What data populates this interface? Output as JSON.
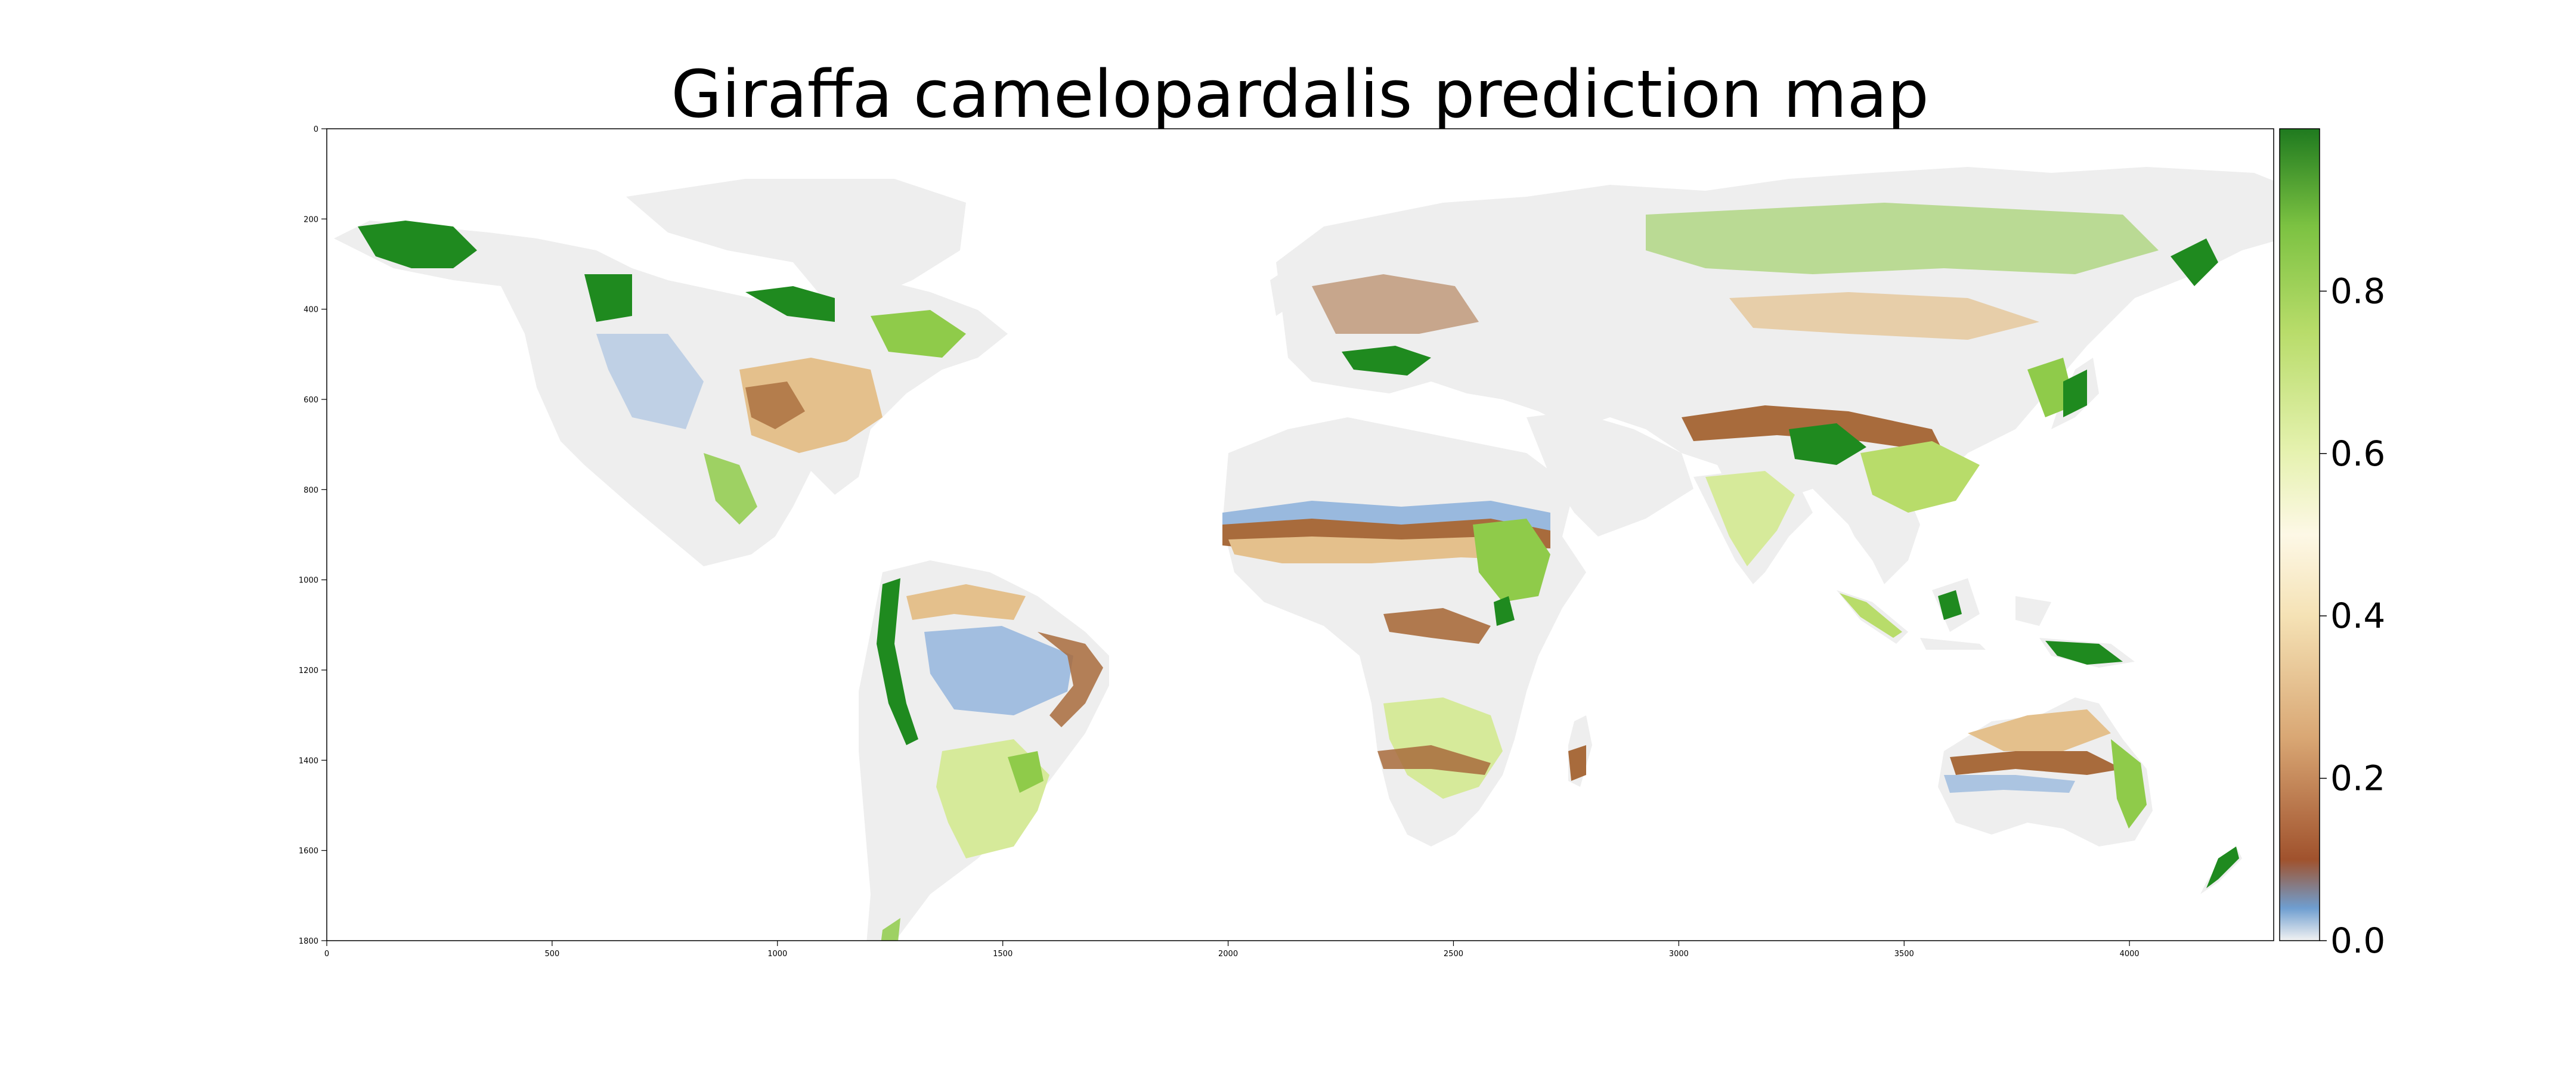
{
  "title": "Giraffa camelopardalis prediction map",
  "chart_data": {
    "type": "heatmap",
    "title": "Giraffa camelopardalis prediction map",
    "xlim": [
      0,
      4320
    ],
    "ylim": [
      1800,
      0
    ],
    "x_ticks": [
      0,
      500,
      1000,
      1500,
      2000,
      2500,
      3000,
      3500,
      4000
    ],
    "y_ticks": [
      0,
      200,
      400,
      600,
      800,
      1000,
      1200,
      1400,
      1600,
      1800
    ],
    "colorbar": {
      "range": [
        0,
        1
      ],
      "ticks": [
        0.0,
        0.2,
        0.4,
        0.6,
        0.8
      ],
      "tick_labels": [
        "0.0",
        "0.2",
        "0.4",
        "0.6",
        "0.8"
      ],
      "colormap_stops": [
        {
          "value": 0.0,
          "color": "#f2f2f2"
        },
        {
          "value": 0.04,
          "color": "#6f9ed0"
        },
        {
          "value": 0.1,
          "color": "#a0522d"
        },
        {
          "value": 0.25,
          "color": "#d9a774"
        },
        {
          "value": 0.4,
          "color": "#f5e2b5"
        },
        {
          "value": 0.5,
          "color": "#fdf8e6"
        },
        {
          "value": 0.6,
          "color": "#e6f2b0"
        },
        {
          "value": 0.75,
          "color": "#b8dc6a"
        },
        {
          "value": 0.88,
          "color": "#7cc242"
        },
        {
          "value": 1.0,
          "color": "#1f7a1f"
        }
      ]
    },
    "colors": {
      "land_low": "#eeeeee",
      "low_blue": "#8fb2dc",
      "brown": "#a86b3c",
      "tan": "#e4c08c",
      "light_green": "#d6ea9a",
      "green": "#8fcb4a",
      "dark_green": "#1f8a1f"
    }
  }
}
